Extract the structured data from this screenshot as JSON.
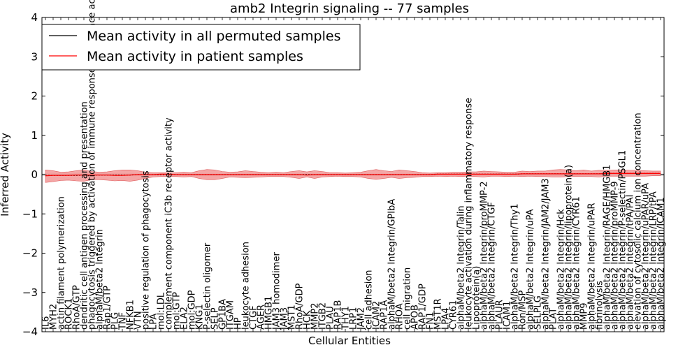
{
  "chart_data": {
    "type": "line",
    "title": "amb2 Integrin signaling -- 77 samples",
    "xlabel": "Cellular Entities",
    "ylabel": "Inferred Activity",
    "ylim": [
      -4,
      4
    ],
    "yticks": [
      -4,
      -3,
      -2,
      -1,
      0,
      1,
      2,
      3,
      4
    ],
    "ytick_labels": [
      "−4",
      "−3",
      "−2",
      "−1",
      "0",
      "1",
      "2",
      "3",
      "4"
    ],
    "legend_location": "top-left",
    "categories": [
      "IL6",
      "MYH2",
      "actin filament polymerization",
      "ROCK1",
      "RhoA/GTP",
      "dendritic cell antigen processing and presentation",
      "phagocytosis triggered by activation of immune response cell surface activating receptor",
      "alphaM/beta2 Integrin",
      "Rap1/GTP",
      "PLG",
      "TNF",
      "NFKB1",
      "VTN",
      "positive regulation of phagocytosis",
      "LPA",
      "mol:LDL",
      "complement component iC3b receptor activity",
      "mol:GTP",
      "ELA2",
      "mol:GDP",
      "KNG1",
      "P-selectin oligomer",
      "SELP",
      "GP1BA",
      "ITGAM",
      "HP",
      "leukocyte adhesion",
      "CTGF",
      "AGER",
      "HMGB1",
      "JAM3 homodimer",
      "JAM3",
      "MST1",
      "RhoA/GDP",
      "HCK",
      "MMP2",
      "ITGB2",
      "PLAU",
      "RAP1B",
      "THY1",
      "LRP1",
      "JAM2",
      "cell adhesion",
      "ICAM2",
      "RAP1A",
      "alphaM/beta2 Integrin/GPIbA",
      "RHOA",
      "cell migration",
      "APOB",
      "RAP1/GDP",
      "FN1",
      "MST1R",
      "LPA4",
      "CYR61",
      "alphaM/beta2 Integrin/Talin",
      "leukocyte activation during inflammatory response",
      "Lipoprotein(a)",
      "alphaM/beta2 Integrin/proMMP-2",
      "alphaM/beta2 Integrin/CTGF",
      "PLAUR",
      "ICAM1",
      "alphaM/beta2 Integrin/Thy1",
      "Ron/MSP",
      "alphaM/beta2 Integrin/uPA",
      "SELPLG",
      "alphaM/beta2 Integrin/JAM2/JAM3",
      "PLAT",
      "alphaM/beta2 Integrin/Hck",
      "alphaM/beta2 Integrin/lipoprotein(a)",
      "alphaM/beta2 Integrin/CYR61",
      "MMP9",
      "alphaM/beta2 Integrin/uPAR",
      "fibrinolysis",
      "alphaM/beta2 Integrin/RAGE/HMGB1",
      "alphaM/beta2 Integrin/proMMP-9",
      "alphaM/beta2 Integrin/P-selectin/PSGL1",
      "alphaM/beta2 Integrin/tPA/PAI",
      "elevation of cytosolic calcium ion concentration",
      "alphaM/beta2 Integrin/uPAR/uPA",
      "alphaM/beta2 Integrin/LRP/tPA",
      "alphaM/beta2 Integrin/ICAM1"
    ],
    "series": [
      {
        "name": "Mean activity in all permuted samples",
        "color": "#000000",
        "values": [
          -0.02,
          -0.02,
          -0.02,
          -0.02,
          -0.02,
          -0.01,
          -0.01,
          -0.01,
          -0.01,
          -0.01,
          -0.01,
          -0.01,
          0,
          0,
          0,
          0,
          0,
          0,
          0,
          0,
          0,
          0,
          0,
          0,
          0,
          0,
          0,
          0,
          0,
          0,
          0,
          0,
          0,
          0,
          0,
          0,
          0,
          0,
          0,
          0,
          0,
          0,
          0,
          0,
          0,
          0,
          0,
          0,
          0,
          0,
          0,
          0.01,
          0.01,
          0.01,
          0.01,
          0.01,
          0.01,
          0.01,
          0.01,
          0.01,
          0.01,
          0.01,
          0.02,
          0.02,
          0.02,
          0.02,
          0.02,
          0.02,
          0.02,
          0.02,
          0.02,
          0.02,
          0.02,
          0.03,
          0.03,
          0.03,
          0.03,
          0.03,
          0.03,
          0.03,
          0.03
        ]
      },
      {
        "name": "Mean activity in patient samples",
        "color": "#ff0000",
        "band_color": "#f08080",
        "values": [
          -0.03,
          -0.02,
          -0.02,
          -0.02,
          -0.01,
          -0.01,
          -0.01,
          -0.01,
          -0.01,
          -0.02,
          -0.02,
          -0.01,
          0,
          0,
          0,
          0.01,
          0.01,
          0,
          0,
          0,
          0,
          0,
          0,
          0,
          0,
          0,
          0,
          0,
          0,
          0,
          0,
          0,
          0,
          0,
          -0.01,
          0,
          0,
          0,
          0,
          0,
          0,
          0,
          0,
          0,
          0,
          0,
          0,
          0,
          0,
          0,
          0,
          0.01,
          0.01,
          0.01,
          0.01,
          0.01,
          0.01,
          0.01,
          0.01,
          0.01,
          0.01,
          0.01,
          0.02,
          0.02,
          0.02,
          0.02,
          0.02,
          0.02,
          0.02,
          0.02,
          0.02,
          0.02,
          0.02,
          0.03,
          0.03,
          0.03,
          0.03,
          0.03,
          0.03,
          0.03,
          0.03
        ],
        "band_upper": [
          0.12,
          0.1,
          0.06,
          0.07,
          0.1,
          0.12,
          0.08,
          0.06,
          0.07,
          0.1,
          0.12,
          0.12,
          0.1,
          0.06,
          0.05,
          0.05,
          0.05,
          0.05,
          0.06,
          0.05,
          0.1,
          0.13,
          0.12,
          0.08,
          0.06,
          0.07,
          0.1,
          0.08,
          0.06,
          0.05,
          0.06,
          0.05,
          0.08,
          0.1,
          0.07,
          0.1,
          0.08,
          0.05,
          0.05,
          0.04,
          0.05,
          0.06,
          0.1,
          0.13,
          0.1,
          0.08,
          0.12,
          0.1,
          0.08,
          0.05,
          0.04,
          0.05,
          0.05,
          0.06,
          0.06,
          0.07,
          0.07,
          0.09,
          0.08,
          0.07,
          0.06,
          0.06,
          0.09,
          0.08,
          0.09,
          0.09,
          0.12,
          0.13,
          0.12,
          0.1,
          0.12,
          0.09,
          0.11,
          0.11,
          0.12,
          0.12,
          0.11,
          0.11,
          0.1,
          0.09,
          0.09
        ],
        "band_lower": [
          -0.2,
          -0.18,
          -0.15,
          -0.14,
          -0.16,
          -0.17,
          -0.13,
          -0.13,
          -0.14,
          -0.16,
          -0.15,
          -0.17,
          -0.14,
          -0.1,
          -0.06,
          -0.05,
          -0.05,
          -0.05,
          -0.06,
          -0.05,
          -0.1,
          -0.13,
          -0.13,
          -0.1,
          -0.06,
          -0.07,
          -0.08,
          -0.07,
          -0.06,
          -0.05,
          -0.05,
          -0.05,
          -0.07,
          -0.1,
          -0.06,
          -0.1,
          -0.06,
          -0.05,
          -0.04,
          -0.05,
          -0.05,
          -0.06,
          -0.1,
          -0.12,
          -0.1,
          -0.07,
          -0.1,
          -0.08,
          -0.07,
          -0.05,
          -0.05,
          -0.04,
          -0.05,
          -0.04,
          -0.05,
          -0.04,
          -0.05,
          -0.06,
          -0.04,
          -0.04,
          -0.05,
          -0.04,
          -0.05,
          -0.04,
          -0.05,
          -0.05,
          -0.06,
          -0.06,
          -0.05,
          -0.05,
          -0.05,
          -0.05,
          -0.06,
          -0.04,
          -0.04,
          -0.04,
          -0.04,
          -0.04,
          -0.04,
          -0.03,
          -0.03
        ]
      }
    ],
    "permuted_band": {
      "color": "#d0d0d0",
      "upper": 0.025,
      "lower": -0.025
    }
  }
}
